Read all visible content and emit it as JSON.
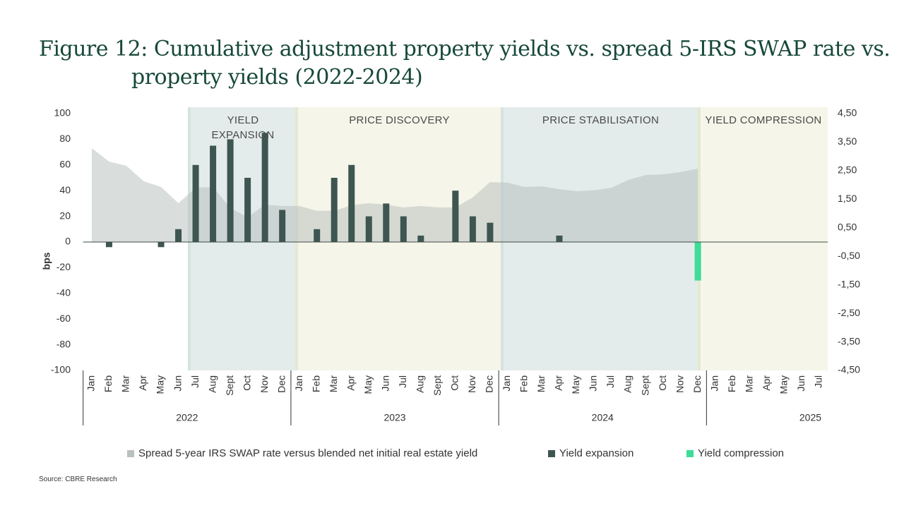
{
  "chart_data": {
    "type": "bar",
    "title": "Figure 12: Cumulative adjustment property yields vs. spread 5-IRS SWAP rate vs. property yields (2022-2024)",
    "y_label": "bps",
    "source": "Source: CBRE Research",
    "phases": [
      "YIELD EXPANSION",
      "PRICE DISCOVERY",
      "PRICE STABILISATION",
      "YIELD COMPRESSION"
    ],
    "years": [
      "2022",
      "2023",
      "2024",
      "2025"
    ],
    "categories": [
      "Jan",
      "Feb",
      "Mar",
      "Apr",
      "May",
      "Jun",
      "Jul",
      "Aug",
      "Sept",
      "Oct",
      "Nov",
      "Dec",
      "Jan",
      "Feb",
      "Mar",
      "Apr",
      "May",
      "Jun",
      "Jul",
      "Aug",
      "Sept",
      "Oct",
      "Nov",
      "Dec",
      "Jan",
      "Feb",
      "Mar",
      "Apr",
      "May",
      "Jun",
      "Jul",
      "Aug",
      "Sept",
      "Oct",
      "Nov",
      "Dec",
      "Jan",
      "Feb",
      "Mar",
      "Apr",
      "May",
      "Jun",
      "Jul"
    ],
    "ylim": [
      -100,
      100
    ],
    "yticks": [
      100,
      80,
      60,
      40,
      20,
      0,
      -20,
      -40,
      -60,
      -80,
      -100
    ],
    "y2lim": [
      -4.5,
      4.5
    ],
    "y2ticks": [
      {
        "value": 4.5,
        "label": "4,50"
      },
      {
        "value": 3.5,
        "label": "3,50"
      },
      {
        "value": 2.5,
        "label": "2,50"
      },
      {
        "value": 1.5,
        "label": "1,50"
      },
      {
        "value": 0.5,
        "label": "0,50"
      },
      {
        "value": -0.5,
        "label": "-0,50"
      },
      {
        "value": -1.5,
        "label": "-1,50"
      },
      {
        "value": -2.5,
        "label": "-2,50"
      },
      {
        "value": -3.5,
        "label": "-3,50"
      },
      {
        "value": -4.5,
        "label": "-4,50"
      }
    ],
    "series": [
      {
        "name": "Spread 5-year IRS SWAP rate versus blended net initial real estate yield",
        "type": "area",
        "axis": "y2",
        "color": "#b9c1bf",
        "values": [
          3.29,
          2.82,
          2.67,
          2.13,
          1.93,
          1.36,
          1.9,
          1.93,
          1.19,
          0.87,
          1.31,
          1.26,
          1.26,
          1.09,
          1.09,
          1.29,
          1.36,
          1.31,
          1.21,
          1.26,
          1.21,
          1.21,
          1.56,
          2.1,
          2.08,
          1.93,
          1.95,
          1.85,
          1.78,
          1.81,
          1.9,
          2.18,
          2.35,
          2.37,
          2.45,
          2.57,
          null,
          null,
          null,
          null,
          null,
          null,
          null
        ]
      },
      {
        "name": "Yield expansion",
        "type": "bar",
        "color": "#3e5551",
        "values": [
          null,
          -4,
          null,
          null,
          -4,
          10,
          60,
          75,
          80,
          50,
          85,
          25,
          null,
          10,
          50,
          60,
          20,
          30,
          20,
          5,
          null,
          40,
          20,
          15,
          null,
          null,
          null,
          5,
          null,
          null,
          null,
          null,
          null,
          null,
          null,
          null,
          null,
          null,
          null,
          null,
          null,
          null,
          null
        ]
      },
      {
        "name": "Yield compression",
        "type": "bar",
        "color": "#3ddc97",
        "values": [
          null,
          null,
          null,
          null,
          null,
          null,
          null,
          null,
          null,
          null,
          null,
          null,
          null,
          null,
          null,
          null,
          null,
          null,
          null,
          null,
          null,
          null,
          null,
          null,
          null,
          null,
          null,
          null,
          null,
          null,
          null,
          null,
          null,
          null,
          null,
          -30,
          null,
          null,
          null,
          null,
          null,
          null,
          null
        ]
      }
    ]
  }
}
